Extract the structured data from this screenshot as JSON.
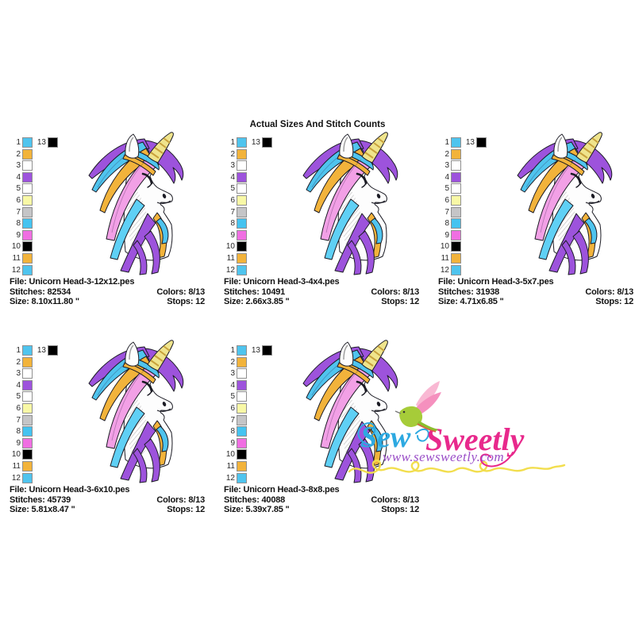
{
  "title": "Actual Sizes And Stitch Counts",
  "labels": {
    "file": "File:",
    "stitches": "Stitches:",
    "size": "Size:",
    "colors": "Colors:",
    "stops": "Stops:"
  },
  "panels": [
    {
      "file": "Unicorn Head-3-12x12.pes",
      "stitches": "82534",
      "size": "8.10x11.80 \"",
      "colors": "8/13",
      "stops": "12"
    },
    {
      "file": "Unicorn Head-3-4x4.pes",
      "stitches": "10491",
      "size": "2.66x3.85 \"",
      "colors": "8/13",
      "stops": "12"
    },
    {
      "file": "Unicorn Head-3-5x7.pes",
      "stitches": "31938",
      "size": "4.71x6.85 \"",
      "colors": "8/13",
      "stops": "12"
    },
    {
      "file": "Unicorn Head-3-6x10.pes",
      "stitches": "45739",
      "size": "5.81x8.47 \"",
      "colors": "8/13",
      "stops": "12"
    },
    {
      "file": "Unicorn Head-3-8x8.pes",
      "stitches": "40088",
      "size": "5.39x7.85 \"",
      "colors": "8/13",
      "stops": "12"
    }
  ],
  "palette": {
    "rows": [
      {
        "label": "1",
        "color": "#4FC4EE",
        "extra": {
          "label": "13",
          "color": "#000000"
        }
      },
      {
        "label": "2",
        "color": "#F2B33B"
      },
      {
        "label": "3",
        "color": "#FFFFFF"
      },
      {
        "label": "4",
        "color": "#9D53DC"
      },
      {
        "label": "5",
        "color": "#FFFFFF"
      },
      {
        "label": "6",
        "color": "#F8F8A6"
      },
      {
        "label": "7",
        "color": "#C5C5C7"
      },
      {
        "label": "8",
        "color": "#45C3F0"
      },
      {
        "label": "9",
        "color": "#F06EE2"
      },
      {
        "label": "10",
        "color": "#000000"
      },
      {
        "label": "11",
        "color": "#F2B33B"
      },
      {
        "label": "12",
        "color": "#4FC4EE"
      }
    ]
  },
  "watermark": {
    "brand_first": "Sew",
    "brand_second": "Sweetly",
    "url": "www.sewsweetly.com"
  },
  "colors": {
    "outline": "#1b1b24",
    "head": "#FDFDFD",
    "shade": "#bdbdbd",
    "horn": "#EFE48C",
    "horn_stripe": "#C8A13B",
    "mane_purple": "#9D53DC",
    "mane_cyan": "#4FC4EE",
    "mane_gold": "#F2B33B",
    "mane_pink": "#F2A0E6",
    "mane_lightblue": "#5FD0F5",
    "wm_blue": "#2DA9E1",
    "wm_pink": "#E8298C",
    "wm_purple": "#9B4FC8",
    "wm_yellow": "#F2DE4E",
    "bird_green": "#A6CC39",
    "bird_green_dark": "#8CBE2E",
    "wing_light": "#F9B8D3",
    "wing_deep": "#F590BE",
    "tail_red": "#E2574B"
  }
}
